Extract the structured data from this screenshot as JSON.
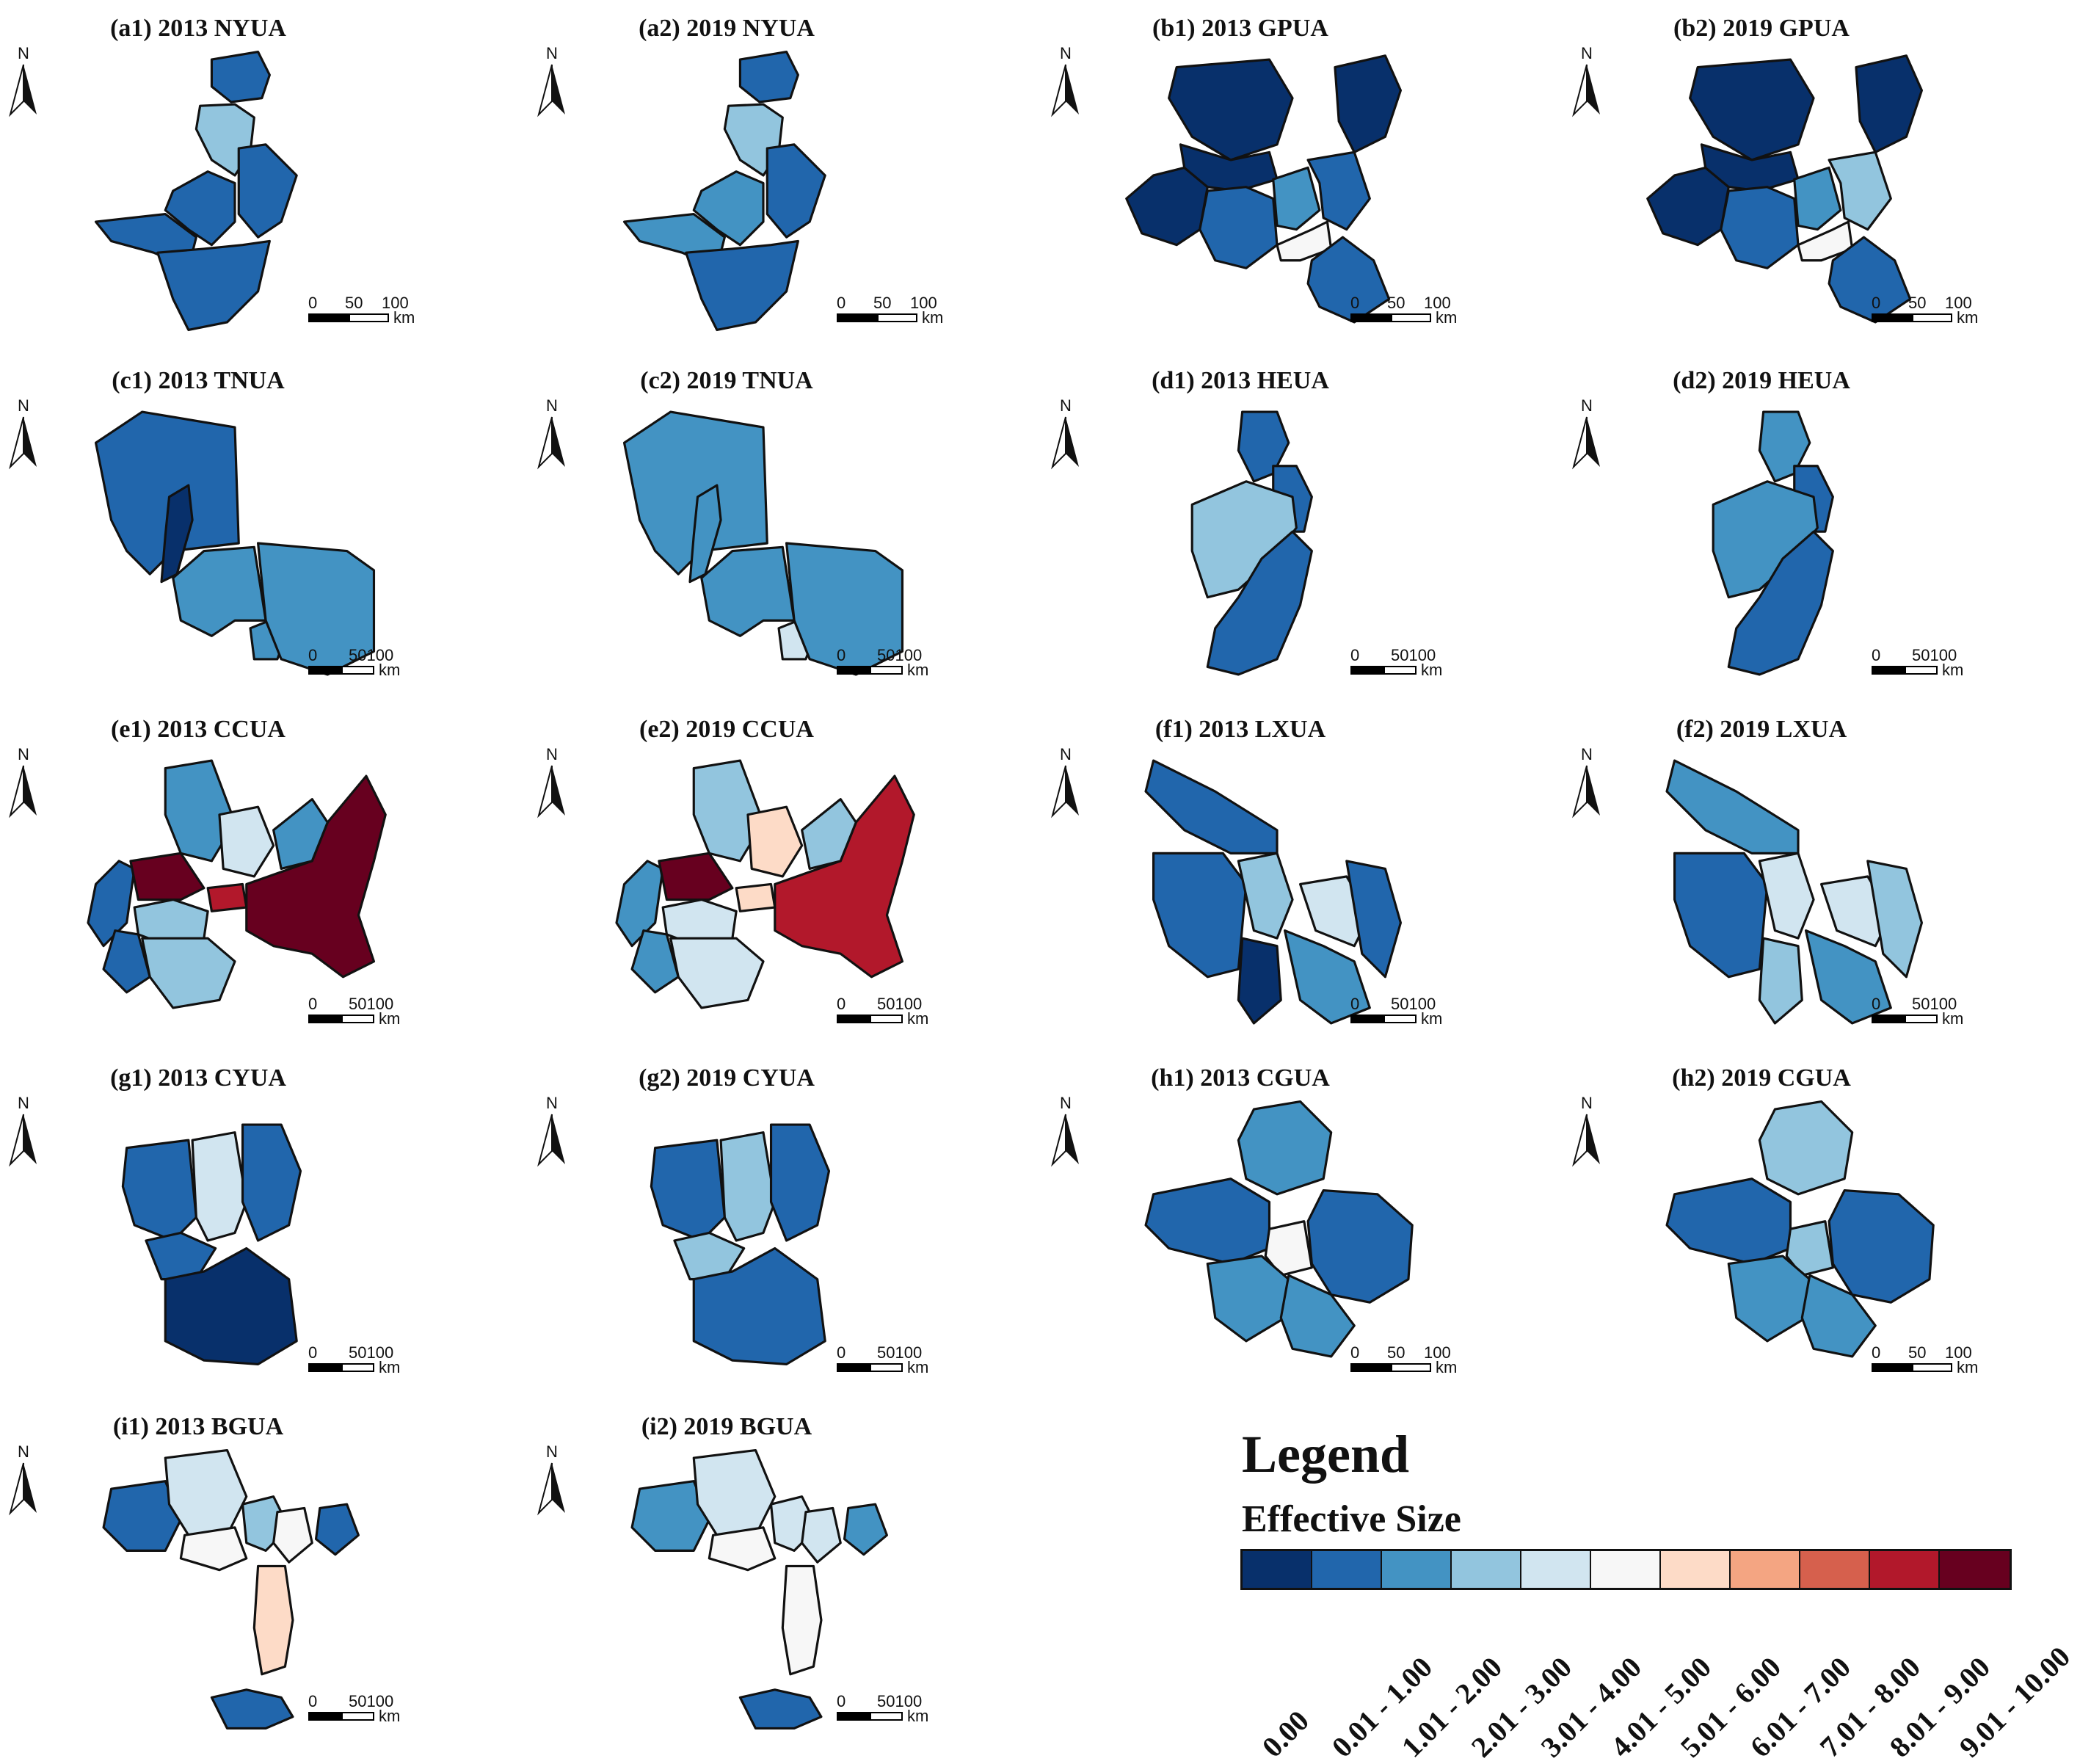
{
  "colors": {
    "c0": "#08306b",
    "c1": "#2166ac",
    "c2": "#4393c3",
    "c3": "#92c5de",
    "c4": "#d1e5f0",
    "c5": "#f7f7f7",
    "c6": "#fddbc7",
    "c7": "#f4a582",
    "c8": "#d6604d",
    "c9": "#b2182b",
    "c10": "#67001f"
  },
  "panels": [
    {
      "title": "(a1) 2013 NYUA",
      "scale": [
        "0",
        "50",
        "100"
      ],
      "unit": "km",
      "fills": [
        "c1",
        "c3",
        "c1",
        "c1",
        "c1",
        "c1"
      ]
    },
    {
      "title": "(a2) 2019 NYUA",
      "scale": [
        "0",
        "50",
        "100"
      ],
      "unit": "km",
      "fills": [
        "c1",
        "c3",
        "c2",
        "c1",
        "c2",
        "c1"
      ]
    },
    {
      "title": "(b1) 2013 GPUA",
      "scale": [
        "0",
        "50",
        "100"
      ],
      "unit": "km",
      "fills": [
        "c0",
        "c0",
        "c0",
        "c0",
        "c1",
        "c2",
        "c5",
        "c1",
        "c1"
      ]
    },
    {
      "title": "(b2) 2019 GPUA",
      "scale": [
        "0",
        "50",
        "100"
      ],
      "unit": "km",
      "fills": [
        "c0",
        "c0",
        "c0",
        "c0",
        "c1",
        "c2",
        "c5",
        "c3",
        "c1"
      ]
    },
    {
      "title": "(c1) 2013 TNUA",
      "scale": [
        "0",
        "50100"
      ],
      "unit": "km",
      "fills": [
        "c1",
        "c0",
        "c2",
        "c2",
        "c2"
      ]
    },
    {
      "title": "(c2) 2019 TNUA",
      "scale": [
        "0",
        "50100"
      ],
      "unit": "km",
      "fills": [
        "c2",
        "c2",
        "c2",
        "c4",
        "c2"
      ]
    },
    {
      "title": "(d1) 2013 HEUA",
      "scale": [
        "0",
        "50100"
      ],
      "unit": "km",
      "fills": [
        "c1",
        "c1",
        "c3",
        "c1"
      ]
    },
    {
      "title": "(d2) 2019 HEUA",
      "scale": [
        "0",
        "50100"
      ],
      "unit": "km",
      "fills": [
        "c2",
        "c1",
        "c2",
        "c1"
      ]
    },
    {
      "title": "(e1) 2013 CCUA",
      "scale": [
        "0",
        "50100"
      ],
      "unit": "km",
      "fills": [
        "c1",
        "c10",
        "c2",
        "c4",
        "c9",
        "c10",
        "c2",
        "c3",
        "c3",
        "c1"
      ]
    },
    {
      "title": "(e2) 2019 CCUA",
      "scale": [
        "0",
        "50100"
      ],
      "unit": "km",
      "fills": [
        "c2",
        "c10",
        "c3",
        "c6",
        "c6",
        "c9",
        "c3",
        "c4",
        "c4",
        "c2"
      ]
    },
    {
      "title": "(f1) 2013 LXUA",
      "scale": [
        "0",
        "50100"
      ],
      "unit": "km",
      "fills": [
        "c1",
        "c1",
        "c3",
        "c4",
        "c0",
        "c2",
        "c1"
      ]
    },
    {
      "title": "(f2) 2019 LXUA",
      "scale": [
        "0",
        "50100"
      ],
      "unit": "km",
      "fills": [
        "c2",
        "c1",
        "c4",
        "c4",
        "c3",
        "c2",
        "c3"
      ]
    },
    {
      "title": "(g1) 2013 CYUA",
      "scale": [
        "0",
        "50100"
      ],
      "unit": "km",
      "fills": [
        "c1",
        "c4",
        "c1",
        "c1",
        "c0"
      ]
    },
    {
      "title": "(g2) 2019 CYUA",
      "scale": [
        "0",
        "50100"
      ],
      "unit": "km",
      "fills": [
        "c1",
        "c3",
        "c1",
        "c3",
        "c1"
      ]
    },
    {
      "title": "(h1) 2013 CGUA",
      "scale": [
        "0",
        "50",
        "100"
      ],
      "unit": "km",
      "fills": [
        "c2",
        "c1",
        "c5",
        "c1",
        "c2",
        "c2"
      ]
    },
    {
      "title": "(h2) 2019 CGUA",
      "scale": [
        "0",
        "50",
        "100"
      ],
      "unit": "km",
      "fills": [
        "c3",
        "c1",
        "c3",
        "c1",
        "c2",
        "c2"
      ]
    },
    {
      "title": "(i1) 2013 BGUA",
      "scale": [
        "0",
        "50100"
      ],
      "unit": "km",
      "fills": [
        "c1",
        "c4",
        "c5",
        "c3",
        "c5",
        "c1",
        "c6",
        "c1"
      ]
    },
    {
      "title": "(i2) 2019 BGUA",
      "scale": [
        "0",
        "50100"
      ],
      "unit": "km",
      "fills": [
        "c2",
        "c4",
        "c5",
        "c4",
        "c4",
        "c2",
        "c5",
        "c1"
      ]
    }
  ],
  "north_label": "N",
  "legend": {
    "title": "Legend",
    "subtitle": "Effective Size",
    "classes": [
      {
        "label": "0.00",
        "color": "#08306b"
      },
      {
        "label": "0.01 - 1.00",
        "color": "#2166ac"
      },
      {
        "label": "1.01 - 2.00",
        "color": "#4393c3"
      },
      {
        "label": "2.01 - 3.00",
        "color": "#92c5de"
      },
      {
        "label": "3.01 - 4.00",
        "color": "#d1e5f0"
      },
      {
        "label": "4.01 - 5.00",
        "color": "#f7f7f7"
      },
      {
        "label": "5.01 - 6.00",
        "color": "#fddbc7"
      },
      {
        "label": "6.01 - 7.00",
        "color": "#f4a582"
      },
      {
        "label": "7.01 - 8.00",
        "color": "#d6604d"
      },
      {
        "label": "8.01 - 9.00",
        "color": "#b2182b"
      },
      {
        "label": "9.01 - 10.00",
        "color": "#67001f"
      }
    ]
  }
}
